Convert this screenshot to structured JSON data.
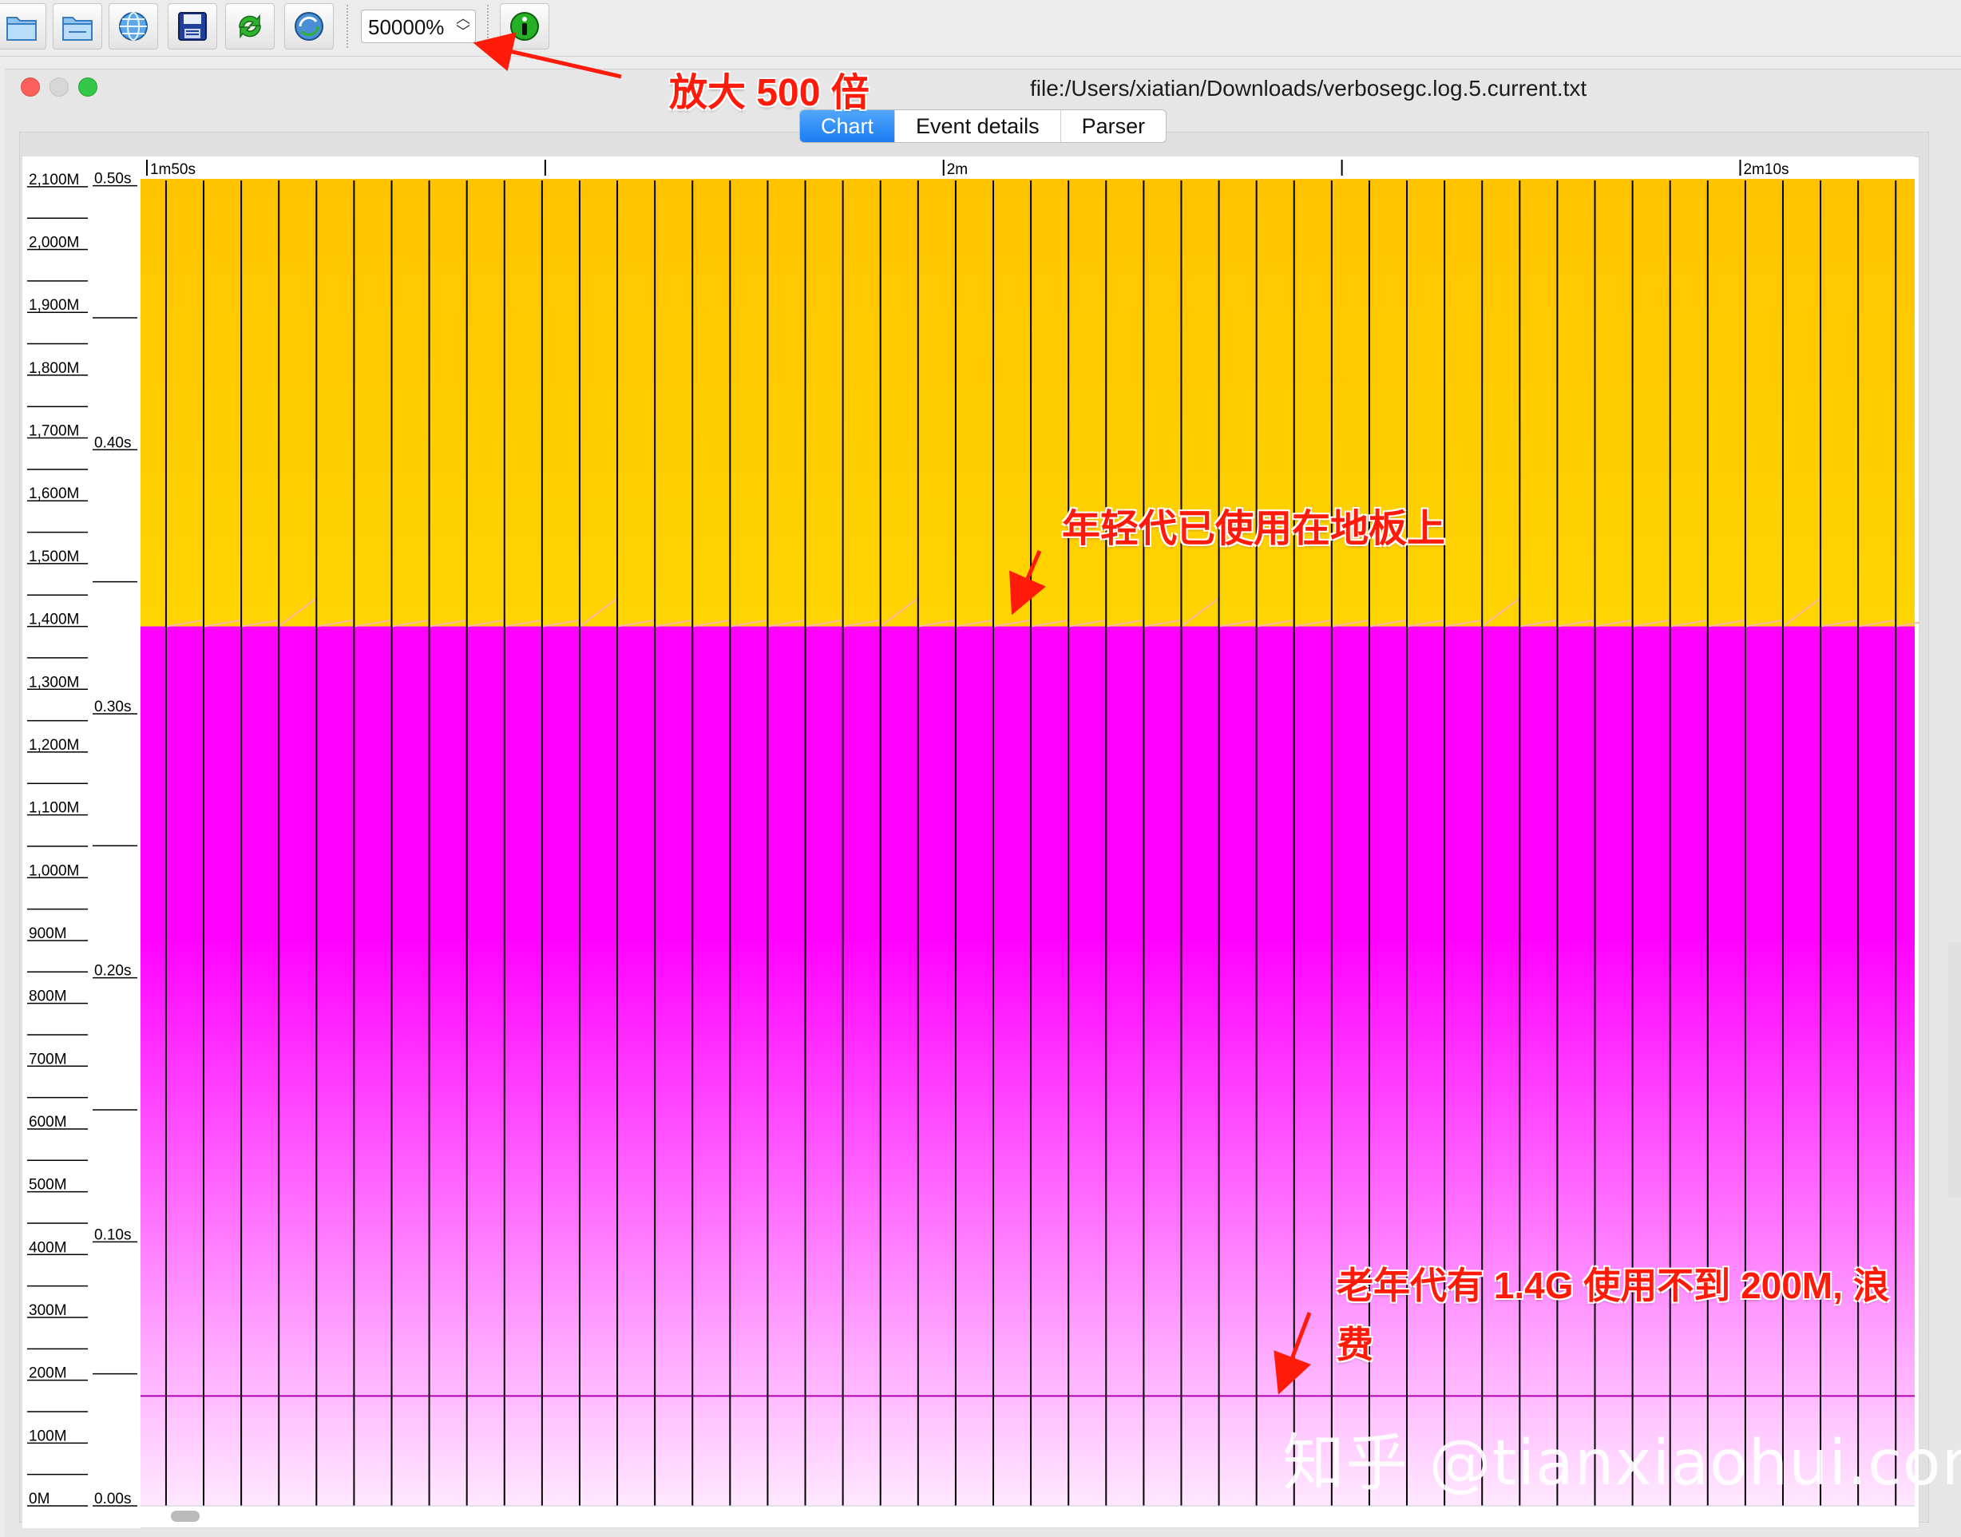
{
  "toolbar": {
    "buttons": [
      {
        "icon": "open-folder-icon"
      },
      {
        "icon": "open-series-icon"
      },
      {
        "icon": "open-url-icon"
      },
      {
        "icon": "save-icon"
      },
      {
        "icon": "refresh-icon"
      },
      {
        "icon": "watch-icon"
      },
      {
        "icon": "info-icon"
      }
    ],
    "zoom_value": "50000%"
  },
  "window": {
    "title": "file:/Users/xiatian/Downloads/verbosegc.log.5.current.txt",
    "tabs": [
      {
        "label": "Chart",
        "active": true
      },
      {
        "label": "Event details",
        "active": false
      },
      {
        "label": "Parser",
        "active": false
      }
    ]
  },
  "annotations": {
    "zoom": "放大 500 倍",
    "young": "年轻代已使用在地板上",
    "old_line1": "老年代有 1.4G 使用不到 200M, 浪",
    "old_line2": "费"
  },
  "watermark": "知乎 @tianxiaohui.com",
  "colors": {
    "young_gen": "#ffc400",
    "young_gen_light": "#ffd400",
    "tenured": "#ff00ff",
    "tenured_light": "#ffe8ff",
    "pause_line": "#000000",
    "used_old_line": "#b000b0",
    "annotation": "#ff1a0a",
    "tab_active": "#1b7cf2"
  },
  "chart_data": {
    "type": "area",
    "memory_axis": {
      "unit": "M",
      "ticks": [
        "0M",
        "100M",
        "200M",
        "300M",
        "400M",
        "500M",
        "600M",
        "700M",
        "800M",
        "900M",
        "1,000M",
        "1,100M",
        "1,200M",
        "1,300M",
        "1,400M",
        "1,500M",
        "1,600M",
        "1,700M",
        "1,800M",
        "1,900M",
        "2,000M",
        "2,100M"
      ],
      "range": [
        0,
        2110
      ]
    },
    "pause_axis": {
      "ticks": [
        "0.00s",
        "0.10s",
        "0.20s",
        "0.30s",
        "0.40s",
        "0.50s"
      ],
      "range": [
        0,
        0.502
      ]
    },
    "time_axis": {
      "labels": [
        {
          "t": 110,
          "label": "1m50s"
        },
        {
          "t": 115,
          "label": "l"
        },
        {
          "t": 120,
          "label": "2m"
        },
        {
          "t": 125,
          "label": "l"
        },
        {
          "t": 130,
          "label": "2m10s"
        }
      ],
      "range": [
        109.92,
        132.19
      ]
    },
    "series": [
      {
        "name": "Tenured generation",
        "total_mb": 1400,
        "used_mb": 175
      },
      {
        "name": "Young generation",
        "total_mb": 2110,
        "used_mb_floor": 1400
      }
    ],
    "gc_events": {
      "start": 110.24,
      "interval": 0.472,
      "count": 47
    }
  }
}
